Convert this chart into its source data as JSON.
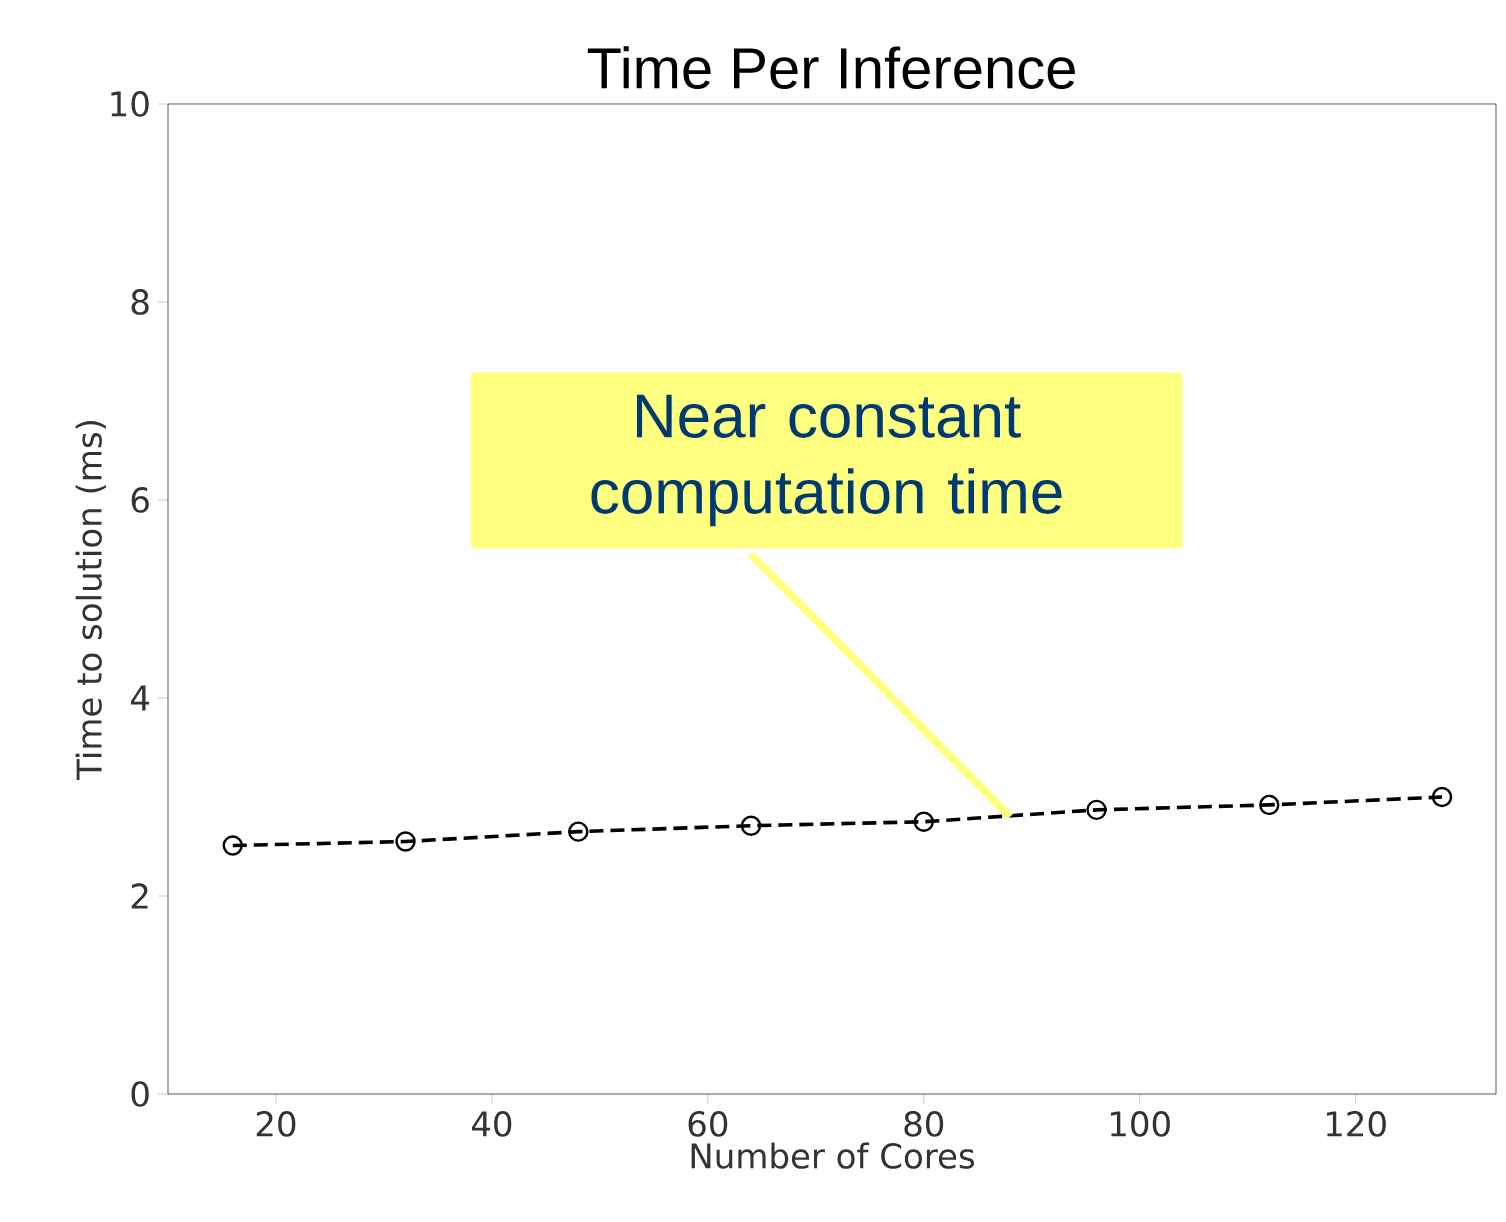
{
  "chart_data": {
    "type": "line",
    "title": "Time Per Inference",
    "xlabel": "Number of Cores",
    "ylabel": "Time to solution (ms)",
    "x": [
      16,
      32,
      48,
      64,
      80,
      96,
      112,
      128
    ],
    "series": [
      {
        "color": "#000000",
        "values": [
          2.51,
          2.55,
          2.65,
          2.71,
          2.75,
          2.87,
          2.92,
          3.0
        ]
      }
    ],
    "marker": "circle",
    "line_style": "dashed",
    "xlim": [
      10,
      133
    ],
    "ylim": [
      0,
      10
    ],
    "xticks": [
      20,
      40,
      60,
      80,
      100,
      120
    ],
    "yticks": [
      0,
      2,
      4,
      6,
      8,
      10
    ],
    "annotations": [
      {
        "text": "Near constant computation time",
        "x": 88,
        "y": 2.8
      }
    ]
  }
}
